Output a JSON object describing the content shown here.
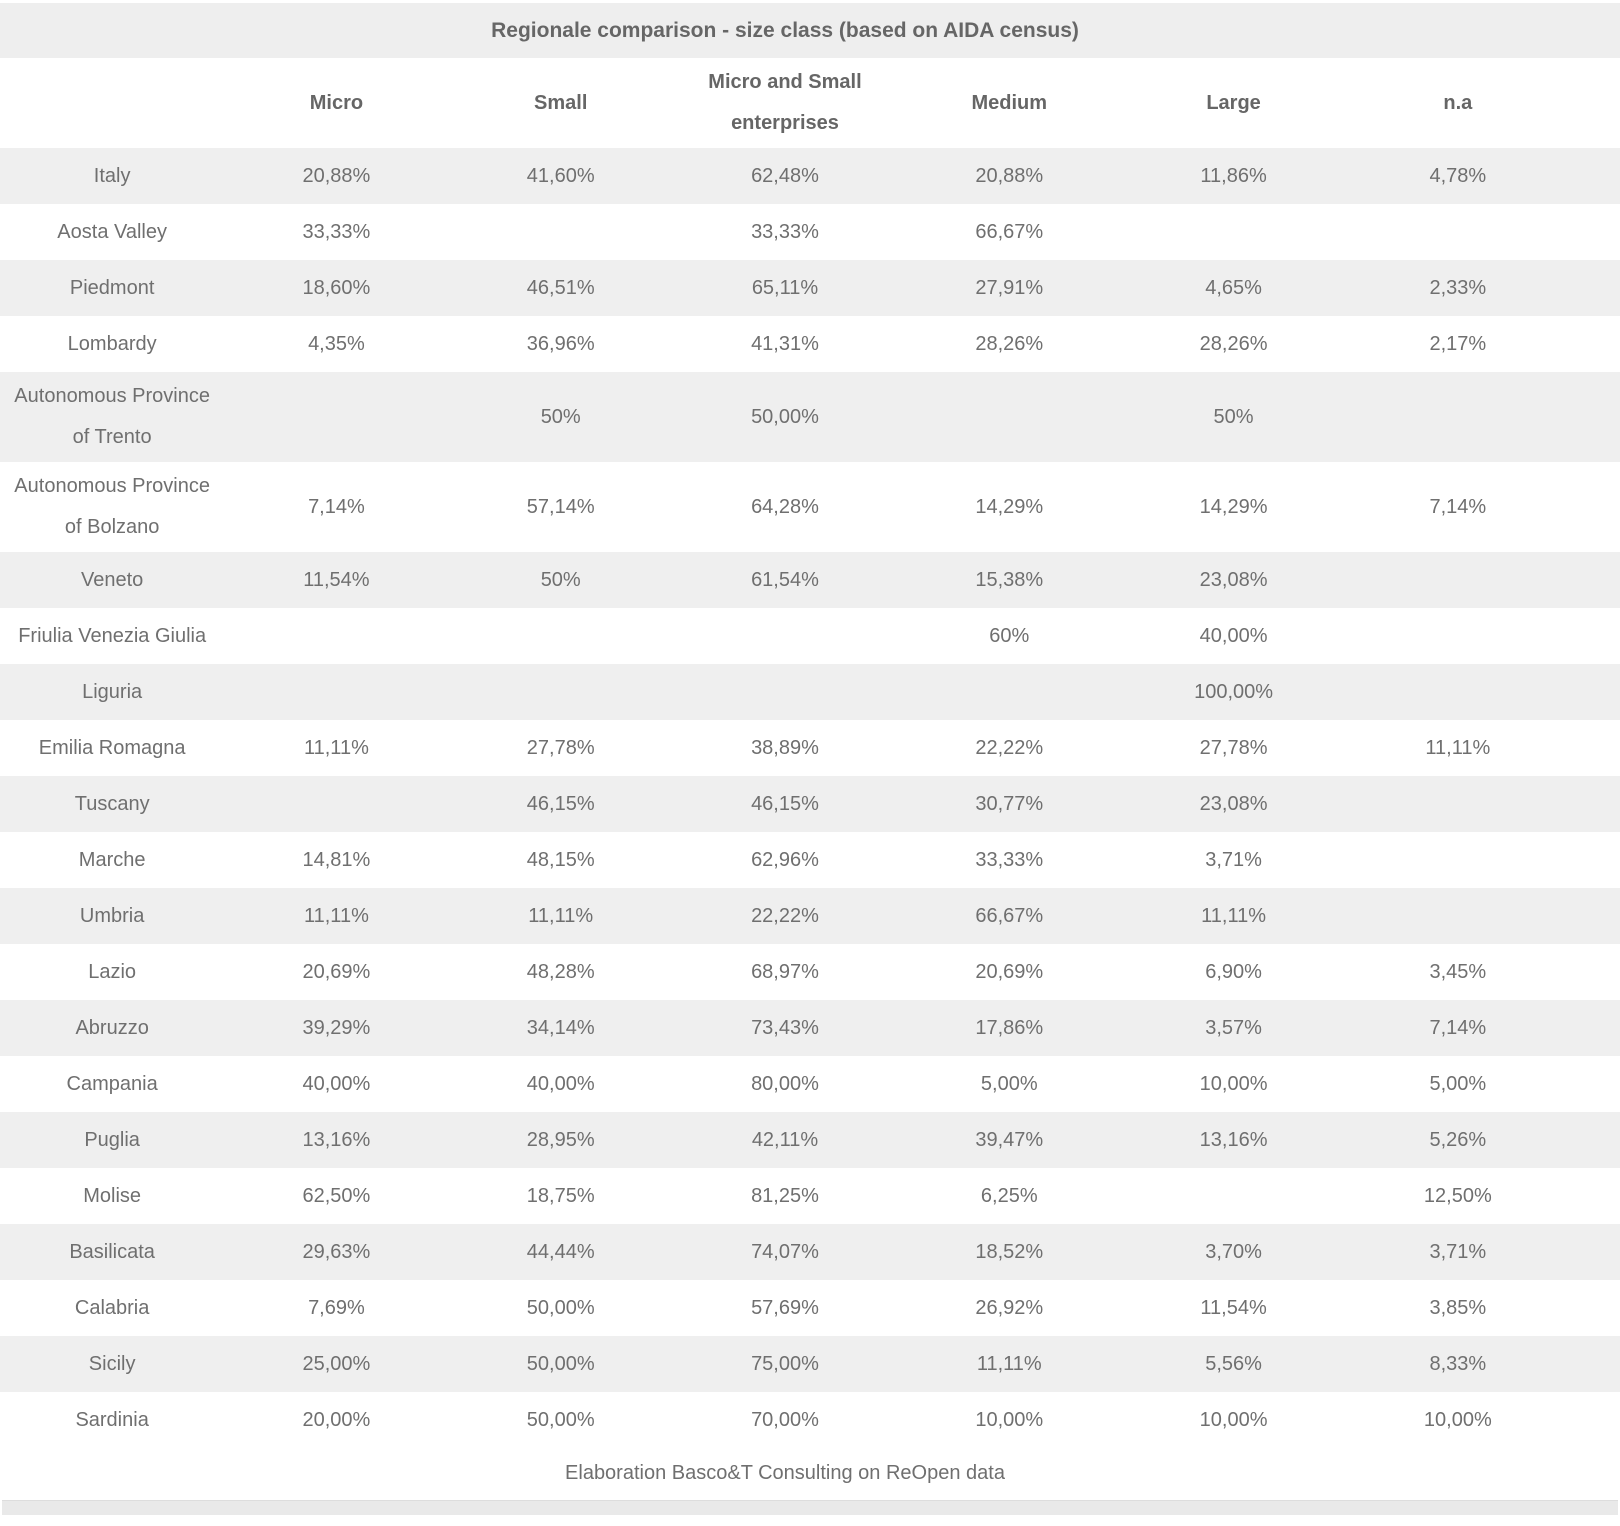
{
  "chart_data": {
    "type": "table",
    "title": "Regionale comparison - size class (based on AIDA census)",
    "columns": [
      "",
      "Micro",
      "Small",
      "Micro and Small enterprises",
      "Medium",
      "Large",
      "n.a"
    ],
    "rows": [
      [
        "Italy",
        "20,88%",
        "41,60%",
        "62,48%",
        "20,88%",
        "11,86%",
        "4,78%"
      ],
      [
        "Aosta Valley",
        "33,33%",
        "",
        "33,33%",
        "66,67%",
        "",
        ""
      ],
      [
        "Piedmont",
        "18,60%",
        "46,51%",
        "65,11%",
        "27,91%",
        "4,65%",
        "2,33%"
      ],
      [
        "Lombardy",
        "4,35%",
        "36,96%",
        "41,31%",
        "28,26%",
        "28,26%",
        "2,17%"
      ],
      [
        "Autonomous Province of Trento",
        "",
        "50%",
        "50,00%",
        "",
        "50%",
        ""
      ],
      [
        "Autonomous Province of Bolzano",
        "7,14%",
        "57,14%",
        "64,28%",
        "14,29%",
        "14,29%",
        "7,14%"
      ],
      [
        "Veneto",
        "11,54%",
        "50%",
        "61,54%",
        "15,38%",
        "23,08%",
        ""
      ],
      [
        "Friulia Venezia Giulia",
        "",
        "",
        "",
        "60%",
        "40,00%",
        ""
      ],
      [
        "Liguria",
        "",
        "",
        "",
        "",
        "100,00%",
        ""
      ],
      [
        "Emilia Romagna",
        "11,11%",
        "27,78%",
        "38,89%",
        "22,22%",
        "27,78%",
        "11,11%"
      ],
      [
        "Tuscany",
        "",
        "46,15%",
        "46,15%",
        "30,77%",
        "23,08%",
        ""
      ],
      [
        "Marche",
        "14,81%",
        "48,15%",
        "62,96%",
        "33,33%",
        "3,71%",
        ""
      ],
      [
        "Umbria",
        "11,11%",
        "11,11%",
        "22,22%",
        "66,67%",
        "11,11%",
        ""
      ],
      [
        "Lazio",
        "20,69%",
        "48,28%",
        "68,97%",
        "20,69%",
        "6,90%",
        "3,45%"
      ],
      [
        "Abruzzo",
        "39,29%",
        "34,14%",
        "73,43%",
        "17,86%",
        "3,57%",
        "7,14%"
      ],
      [
        "Campania",
        "40,00%",
        "40,00%",
        "80,00%",
        "5,00%",
        "10,00%",
        "5,00%"
      ],
      [
        "Puglia",
        "13,16%",
        "28,95%",
        "42,11%",
        "39,47%",
        "13,16%",
        "5,26%"
      ],
      [
        "Molise",
        "62,50%",
        "18,75%",
        "81,25%",
        "6,25%",
        "",
        "12,50%"
      ],
      [
        "Basilicata",
        "29,63%",
        "44,44%",
        "74,07%",
        "18,52%",
        "3,70%",
        "3,71%"
      ],
      [
        "Calabria",
        "7,69%",
        "50,00%",
        "57,69%",
        "26,92%",
        "11,54%",
        "3,85%"
      ],
      [
        "Sicily",
        "25,00%",
        "50,00%",
        "75,00%",
        "11,11%",
        "5,56%",
        "8,33%"
      ],
      [
        "Sardinia",
        "20,00%",
        "50,00%",
        "70,00%",
        "10,00%",
        "10,00%",
        "10,00%"
      ]
    ],
    "footer": "Elaboration Basco&T Consulting on ReOpen data",
    "layout": {
      "stripe_color": "#efefef",
      "title_band_color": "#eeeeee",
      "header_text_color": "#666666",
      "body_text_color": "#6f6f6f",
      "first_data_row_striped": true,
      "legend_position": "none",
      "grid": false
    }
  }
}
